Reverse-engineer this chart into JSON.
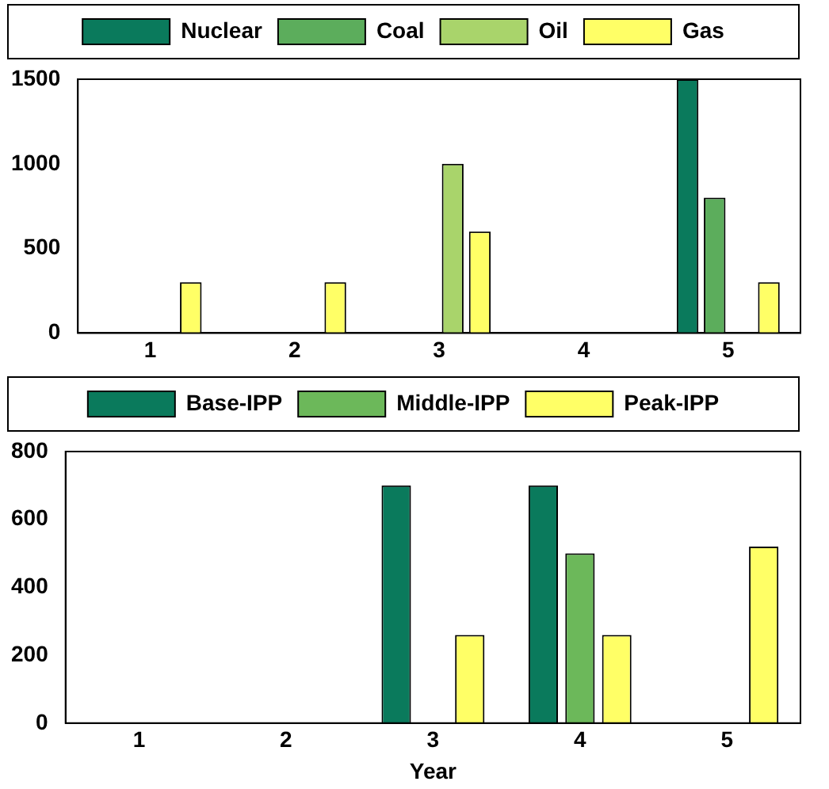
{
  "chart_data": [
    {
      "type": "bar",
      "categories": [
        "1",
        "2",
        "3",
        "4",
        "5"
      ],
      "series": [
        {
          "name": "Nuclear",
          "color": "#0a7a5c",
          "values": [
            0,
            0,
            0,
            0,
            1500
          ]
        },
        {
          "name": "Coal",
          "color": "#5cad5c",
          "values": [
            0,
            0,
            0,
            0,
            800
          ]
        },
        {
          "name": "Oil",
          "color": "#a9d46b",
          "values": [
            0,
            0,
            1000,
            0,
            0
          ]
        },
        {
          "name": "Gas",
          "color": "#ffff66",
          "values": [
            300,
            300,
            600,
            0,
            300
          ]
        }
      ],
      "ylim": [
        0,
        1500
      ],
      "yticks": [
        0,
        500,
        1000,
        1500
      ],
      "grid": false,
      "legend": "top"
    },
    {
      "type": "bar",
      "categories": [
        "1",
        "2",
        "3",
        "4",
        "5"
      ],
      "xlabel": "Year",
      "series": [
        {
          "name": "Base-IPP",
          "color": "#0a7a5c",
          "values": [
            0,
            0,
            700,
            700,
            0
          ]
        },
        {
          "name": "Middle-IPP",
          "color": "#6cb85a",
          "values": [
            0,
            0,
            0,
            500,
            0
          ]
        },
        {
          "name": "Peak-IPP",
          "color": "#ffff66",
          "values": [
            0,
            0,
            260,
            260,
            520
          ]
        }
      ],
      "ylim": [
        0,
        800
      ],
      "yticks": [
        0,
        200,
        400,
        600,
        800
      ],
      "grid": false,
      "legend": "top"
    }
  ]
}
